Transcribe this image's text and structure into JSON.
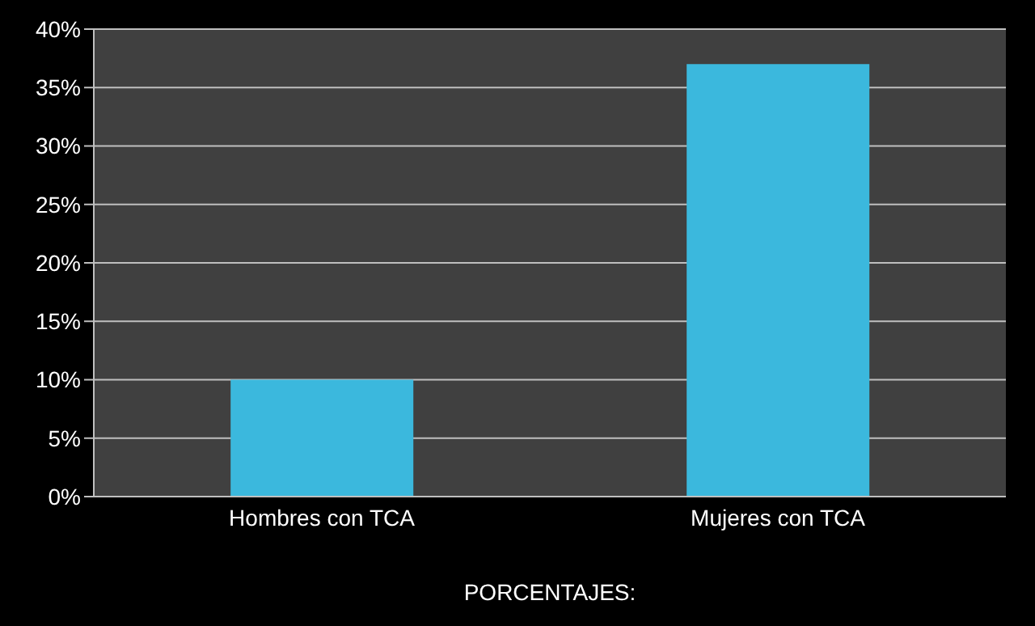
{
  "chart_data": {
    "type": "bar",
    "xlabel": "PORCENTAJES:",
    "categories": [
      "Hombres con TCA",
      "Mujeres con TCA"
    ],
    "values": [
      10,
      37
    ],
    "color": "#3bb8dd",
    "ylim": [
      0,
      40
    ],
    "yticks": [
      {
        "value": 0,
        "label": "0%"
      },
      {
        "value": 5,
        "label": "5%"
      },
      {
        "value": 10,
        "label": "10%"
      },
      {
        "value": 15,
        "label": "15%"
      },
      {
        "value": 20,
        "label": "20%"
      },
      {
        "value": 25,
        "label": "25%"
      },
      {
        "value": 30,
        "label": "30%"
      },
      {
        "value": 35,
        "label": "35%"
      },
      {
        "value": 40,
        "label": "40%"
      }
    ],
    "grid": "y"
  }
}
